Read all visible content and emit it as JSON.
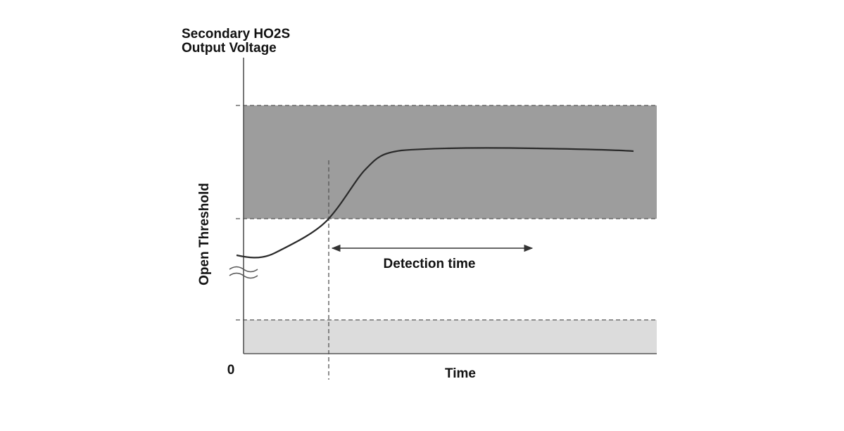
{
  "y_axis_label": {
    "line1": "Secondary HO2S",
    "line2": "Output Voltage"
  },
  "threshold_label": "Open Threshold",
  "origin_label": "0",
  "x_axis_label": "Time",
  "annotation": "Detection time"
}
